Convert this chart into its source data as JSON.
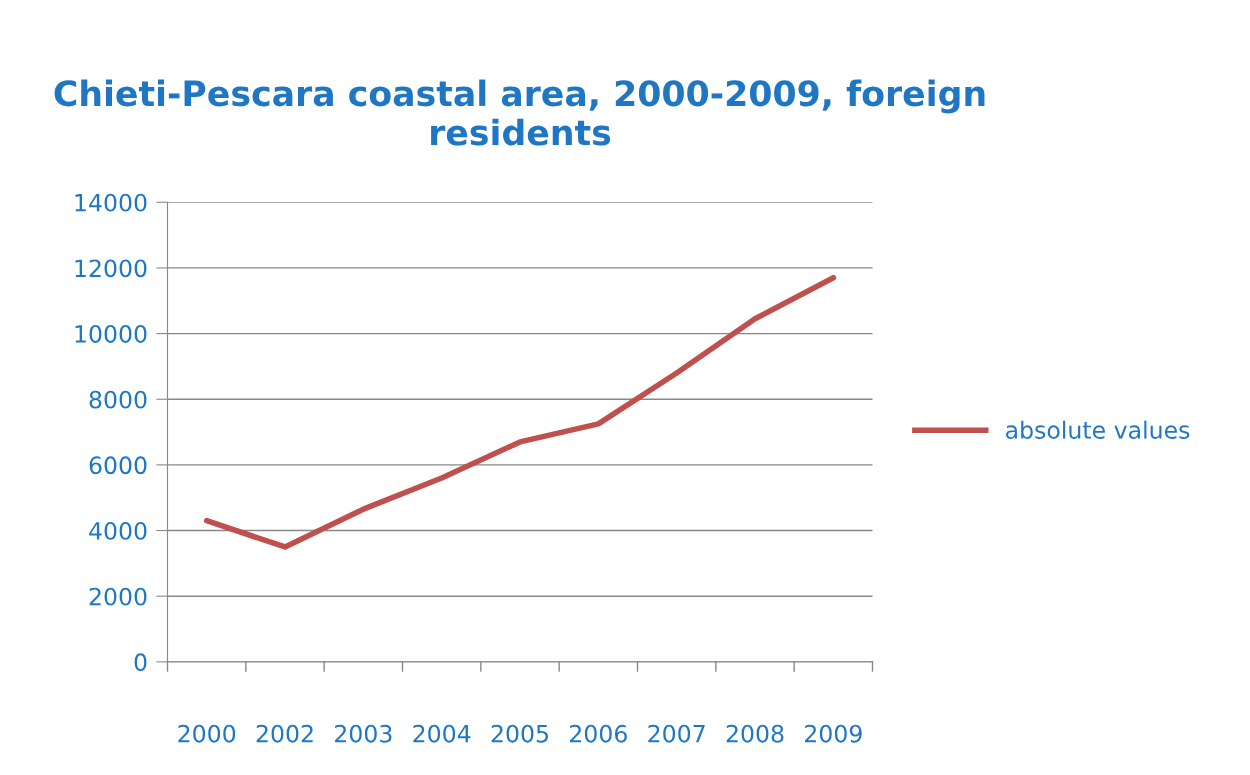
{
  "chart_data": {
    "type": "line",
    "title": "Chieti-Pescara coastal area, 2000-2009, foreign residents",
    "categories": [
      "2000",
      "2002",
      "2003",
      "2004",
      "2005",
      "2006",
      "2007",
      "2008",
      "2009"
    ],
    "series": [
      {
        "name": "absolute values",
        "color": "#c0504d",
        "values": [
          4300,
          3500,
          4650,
          5600,
          6700,
          7250,
          8800,
          10450,
          11700
        ]
      }
    ],
    "ylim": [
      0,
      14000
    ],
    "yticks": [
      0,
      2000,
      4000,
      6000,
      8000,
      10000,
      12000,
      14000
    ],
    "grid": "y",
    "legend": "right",
    "marker": "none"
  }
}
